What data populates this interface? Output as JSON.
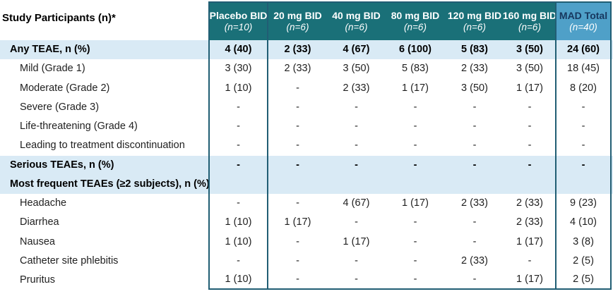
{
  "table": {
    "row_header": "Study Participants (n)*",
    "columns": [
      {
        "label": "Placebo BID",
        "n": "(n=10)"
      },
      {
        "label": "20 mg BID",
        "n": "(n=6)"
      },
      {
        "label": "40 mg BID",
        "n": "(n=6)"
      },
      {
        "label": "80 mg BID",
        "n": "(n=6)"
      },
      {
        "label": "120 mg BID",
        "n": "(n=6)"
      },
      {
        "label": "160 mg BID",
        "n": "(n=6)"
      },
      {
        "label": "MAD Total",
        "n": "(n=40)"
      }
    ],
    "rows": [
      {
        "label": "Any TEAE, n (%)",
        "emphasis": true,
        "indent": 1,
        "values": [
          "4 (40)",
          "2 (33)",
          "4 (67)",
          "6 (100)",
          "5 (83)",
          "3 (50)",
          "24 (60)"
        ]
      },
      {
        "label": "Mild (Grade 1)",
        "emphasis": false,
        "indent": 2,
        "values": [
          "3 (30)",
          "2 (33)",
          "3 (50)",
          "5 (83)",
          "2 (33)",
          "3 (50)",
          "18 (45)"
        ]
      },
      {
        "label": "Moderate (Grade 2)",
        "emphasis": false,
        "indent": 2,
        "values": [
          "1 (10)",
          "-",
          "2 (33)",
          "1 (17)",
          "3 (50)",
          "1 (17)",
          "8 (20)"
        ]
      },
      {
        "label": "Severe (Grade 3)",
        "emphasis": false,
        "indent": 2,
        "values": [
          "-",
          "-",
          "-",
          "-",
          "-",
          "-",
          "-"
        ]
      },
      {
        "label": "Life-threatening (Grade 4)",
        "emphasis": false,
        "indent": 2,
        "values": [
          "-",
          "-",
          "-",
          "-",
          "-",
          "-",
          "-"
        ]
      },
      {
        "label": "Leading to treatment discontinuation",
        "emphasis": false,
        "indent": 2,
        "values": [
          "-",
          "-",
          "-",
          "-",
          "-",
          "-",
          "-"
        ]
      },
      {
        "label": "Serious TEAEs, n (%)",
        "emphasis": true,
        "indent": 1,
        "values": [
          "-",
          "-",
          "-",
          "-",
          "-",
          "-",
          "-"
        ]
      },
      {
        "label": "Most frequent TEAEs (≥2 subjects), n (%)",
        "emphasis": true,
        "indent": 1,
        "values": [
          "",
          "",
          "",
          "",
          "",
          "",
          ""
        ]
      },
      {
        "label": "Headache",
        "emphasis": false,
        "indent": 2,
        "values": [
          "-",
          "-",
          "4 (67)",
          "1 (17)",
          "2 (33)",
          "2 (33)",
          "9 (23)"
        ]
      },
      {
        "label": "Diarrhea",
        "emphasis": false,
        "indent": 2,
        "values": [
          "1 (10)",
          "1 (17)",
          "-",
          "-",
          "-",
          "2 (33)",
          "4 (10)"
        ]
      },
      {
        "label": "Nausea",
        "emphasis": false,
        "indent": 2,
        "values": [
          "1 (10)",
          "-",
          "1 (17)",
          "-",
          "-",
          "1 (17)",
          "3 (8)"
        ]
      },
      {
        "label": "Catheter site phlebitis",
        "emphasis": false,
        "indent": 2,
        "values": [
          "-",
          "-",
          "-",
          "-",
          "2 (33)",
          "-",
          "2 (5)"
        ]
      },
      {
        "label": "Pruritus",
        "emphasis": false,
        "indent": 2,
        "values": [
          "1 (10)",
          "-",
          "-",
          "-",
          "-",
          "1 (17)",
          "2 (5)"
        ]
      }
    ]
  },
  "colors": {
    "header_teal": "#1A7078",
    "mad_total_header_blue": "#4FA0C8",
    "mad_total_header_text": "#17375E",
    "band_light_blue": "#D9EAF5",
    "table_border": "#215E74",
    "header_text": "#FFFFFF",
    "body_text": "#1F1F1F"
  }
}
